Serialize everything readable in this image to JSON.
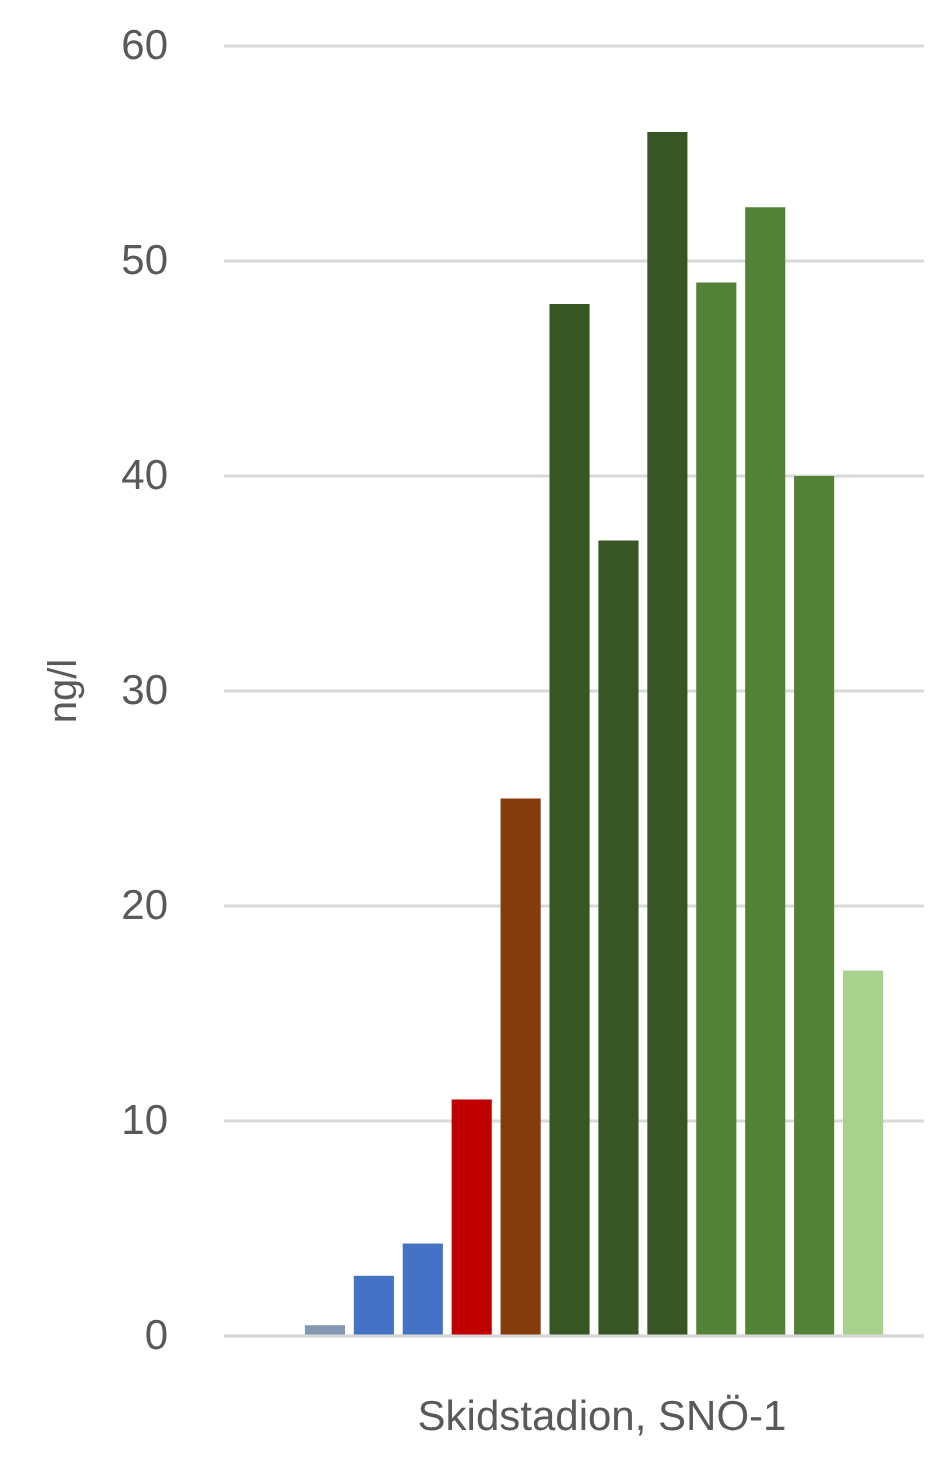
{
  "chart_data": {
    "type": "bar",
    "xlabel": "Skidstadion, SNÖ-1",
    "ylabel": "ng/l",
    "categories": [
      null,
      null,
      null,
      null,
      null,
      null,
      null,
      null,
      null,
      null,
      null,
      null
    ],
    "values": [
      0.5,
      2.8,
      4.3,
      11,
      25,
      48,
      37,
      56,
      49,
      52.5,
      40,
      17
    ],
    "colors": [
      "#8497b0",
      "#4472c4",
      "#4472c4",
      "#c00000",
      "#843c0c",
      "#375623",
      "#375623",
      "#375623",
      "#538135",
      "#538135",
      "#538135",
      "#a9d18e"
    ],
    "ylim": [
      0,
      60
    ],
    "yticks": [
      0,
      10,
      20,
      30,
      40,
      50,
      60
    ],
    "grid": "y"
  }
}
